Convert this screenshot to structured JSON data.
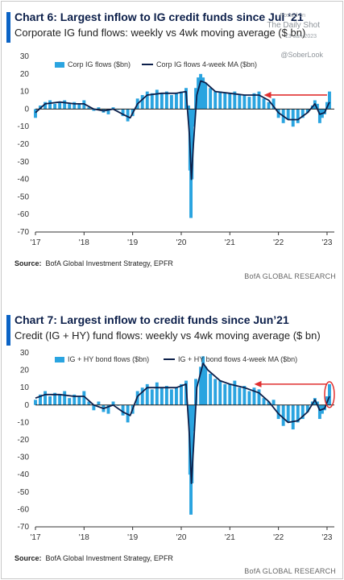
{
  "watermark": {
    "posted": "Posted on",
    "site": "The Daily Shot",
    "date": "13-Jan-2023",
    "handle": "@SoberLook"
  },
  "colors": {
    "bars": "#2aa4e0",
    "ma_line": "#0c1f4a",
    "arrow": "#e03030",
    "accent": "#0b63c5"
  },
  "chart_data": [
    {
      "type": "bar",
      "title": "Chart 6: Largest inflow to IG credit funds since Jul ‘21",
      "subtitle": "Corporate IG fund flows: weekly vs 4wk moving average ($ bn)",
      "xlabel": "",
      "ylabel": "",
      "ylim": [
        -70,
        30
      ],
      "yticks": [
        30,
        20,
        10,
        0,
        -10,
        -20,
        -30,
        -40,
        -50,
        -60,
        -70
      ],
      "xlim": [
        2017.0,
        2023.15
      ],
      "xticks": [
        "'17",
        "'18",
        "'19",
        "'20",
        "'21",
        "'22",
        "'23"
      ],
      "legend": {
        "placement": "top-left",
        "bar_series": "Corp IG flows ($bn)",
        "line_series": "Corp IG flows 4-week MA ($bn)"
      },
      "grid": false,
      "annotation": {
        "type": "arrow",
        "direction": "left",
        "from": [
          2023.0,
          8
        ],
        "to": [
          2021.7,
          8
        ]
      },
      "highlight_circle": false,
      "source": "BofA Global Investment Strategy, EPFR",
      "brand": "BofA GLOBAL RESEARCH",
      "series": [
        {
          "name": "Corp IG flows ($bn)",
          "kind": "bar",
          "points": [
            [
              2017.0,
              -5
            ],
            [
              2017.1,
              2
            ],
            [
              2017.2,
              4
            ],
            [
              2017.3,
              5
            ],
            [
              2017.4,
              3
            ],
            [
              2017.5,
              4
            ],
            [
              2017.6,
              5
            ],
            [
              2017.7,
              3
            ],
            [
              2017.8,
              4
            ],
            [
              2017.9,
              3
            ],
            [
              2018.0,
              5
            ],
            [
              2018.1,
              1
            ],
            [
              2018.2,
              -1
            ],
            [
              2018.3,
              1
            ],
            [
              2018.4,
              -2
            ],
            [
              2018.5,
              -3
            ],
            [
              2018.6,
              1
            ],
            [
              2018.7,
              0
            ],
            [
              2018.8,
              -4
            ],
            [
              2018.9,
              -7
            ],
            [
              2019.0,
              -4
            ],
            [
              2019.1,
              6
            ],
            [
              2019.2,
              8
            ],
            [
              2019.3,
              10
            ],
            [
              2019.4,
              9
            ],
            [
              2019.5,
              11
            ],
            [
              2019.6,
              9
            ],
            [
              2019.7,
              10
            ],
            [
              2019.8,
              8
            ],
            [
              2019.9,
              9
            ],
            [
              2020.0,
              10
            ],
            [
              2020.1,
              12
            ],
            [
              2020.15,
              2
            ],
            [
              2020.18,
              -35
            ],
            [
              2020.2,
              -62
            ],
            [
              2020.22,
              -40
            ],
            [
              2020.25,
              -10
            ],
            [
              2020.3,
              12
            ],
            [
              2020.35,
              18
            ],
            [
              2020.4,
              20
            ],
            [
              2020.45,
              18
            ],
            [
              2020.5,
              15
            ],
            [
              2020.6,
              12
            ],
            [
              2020.7,
              10
            ],
            [
              2020.8,
              10
            ],
            [
              2020.9,
              9
            ],
            [
              2021.0,
              9
            ],
            [
              2021.1,
              10
            ],
            [
              2021.2,
              8
            ],
            [
              2021.3,
              8
            ],
            [
              2021.4,
              7
            ],
            [
              2021.5,
              9
            ],
            [
              2021.6,
              10
            ],
            [
              2021.7,
              6
            ],
            [
              2021.8,
              4
            ],
            [
              2021.9,
              6
            ],
            [
              2022.0,
              -5
            ],
            [
              2022.1,
              -8
            ],
            [
              2022.2,
              -6
            ],
            [
              2022.3,
              -10
            ],
            [
              2022.4,
              -8
            ],
            [
              2022.5,
              -5
            ],
            [
              2022.6,
              -2
            ],
            [
              2022.7,
              2
            ],
            [
              2022.75,
              5
            ],
            [
              2022.8,
              3
            ],
            [
              2022.85,
              -8
            ],
            [
              2022.9,
              -5
            ],
            [
              2022.95,
              -3
            ],
            [
              2023.0,
              4
            ],
            [
              2023.05,
              10
            ]
          ]
        },
        {
          "name": "Corp IG flows 4-week MA ($bn)",
          "kind": "line",
          "points": [
            [
              2017.0,
              -2
            ],
            [
              2017.2,
              3
            ],
            [
              2017.5,
              4
            ],
            [
              2017.8,
              3
            ],
            [
              2018.0,
              3
            ],
            [
              2018.2,
              0
            ],
            [
              2018.4,
              -1
            ],
            [
              2018.6,
              0
            ],
            [
              2018.8,
              -3
            ],
            [
              2018.95,
              -5
            ],
            [
              2019.1,
              3
            ],
            [
              2019.3,
              8
            ],
            [
              2019.6,
              9
            ],
            [
              2019.9,
              9
            ],
            [
              2020.1,
              10
            ],
            [
              2020.17,
              -15
            ],
            [
              2020.21,
              -40
            ],
            [
              2020.25,
              -20
            ],
            [
              2020.32,
              8
            ],
            [
              2020.4,
              16
            ],
            [
              2020.5,
              15
            ],
            [
              2020.7,
              10
            ],
            [
              2021.0,
              9
            ],
            [
              2021.3,
              8
            ],
            [
              2021.6,
              8
            ],
            [
              2021.8,
              5
            ],
            [
              2022.0,
              -2
            ],
            [
              2022.2,
              -6
            ],
            [
              2022.4,
              -6
            ],
            [
              2022.6,
              -2
            ],
            [
              2022.75,
              3
            ],
            [
              2022.85,
              -3
            ],
            [
              2022.95,
              -2
            ],
            [
              2023.05,
              4
            ]
          ]
        }
      ]
    },
    {
      "type": "bar",
      "title": "Chart 7: Largest inflow to credit funds since Jun’21",
      "subtitle": "Credit (IG + HY) fund flows: weekly vs 4wk moving average ($ bn)",
      "xlabel": "",
      "ylabel": "",
      "ylim": [
        -70,
        30
      ],
      "yticks": [
        30,
        20,
        10,
        0,
        -10,
        -20,
        -30,
        -40,
        -50,
        -60,
        -70
      ],
      "xlim": [
        2017.0,
        2023.15
      ],
      "xticks": [
        "'17",
        "'18",
        "'19",
        "'20",
        "'21",
        "'22",
        "'23"
      ],
      "legend": {
        "placement": "top-left",
        "bar_series": "IG + HY bond flows ($bn)",
        "line_series": "IG + HY bond flows 4-week MA ($bn)"
      },
      "grid": false,
      "annotation": {
        "type": "arrow",
        "direction": "left",
        "from": [
          2023.0,
          12
        ],
        "to": [
          2021.5,
          12
        ]
      },
      "highlight_circle": true,
      "source": "BofA Global Investment Strategy, EPFR",
      "brand": "BofA GLOBAL RESEARCH",
      "series": [
        {
          "name": "IG + HY bond flows ($bn)",
          "kind": "bar",
          "points": [
            [
              2017.0,
              3
            ],
            [
              2017.1,
              6
            ],
            [
              2017.2,
              8
            ],
            [
              2017.3,
              5
            ],
            [
              2017.4,
              7
            ],
            [
              2017.5,
              6
            ],
            [
              2017.6,
              8
            ],
            [
              2017.7,
              4
            ],
            [
              2017.8,
              6
            ],
            [
              2017.9,
              5
            ],
            [
              2018.0,
              8
            ],
            [
              2018.1,
              2
            ],
            [
              2018.2,
              -3
            ],
            [
              2018.3,
              2
            ],
            [
              2018.4,
              -4
            ],
            [
              2018.5,
              -5
            ],
            [
              2018.6,
              2
            ],
            [
              2018.7,
              0
            ],
            [
              2018.8,
              -6
            ],
            [
              2018.9,
              -10
            ],
            [
              2019.0,
              -5
            ],
            [
              2019.1,
              8
            ],
            [
              2019.2,
              10
            ],
            [
              2019.3,
              12
            ],
            [
              2019.4,
              9
            ],
            [
              2019.5,
              13
            ],
            [
              2019.6,
              10
            ],
            [
              2019.7,
              11
            ],
            [
              2019.8,
              9
            ],
            [
              2019.9,
              10
            ],
            [
              2020.0,
              12
            ],
            [
              2020.1,
              14
            ],
            [
              2020.15,
              0
            ],
            [
              2020.18,
              -40
            ],
            [
              2020.2,
              -63
            ],
            [
              2020.22,
              -45
            ],
            [
              2020.25,
              -15
            ],
            [
              2020.3,
              15
            ],
            [
              2020.4,
              22
            ],
            [
              2020.45,
              28
            ],
            [
              2020.5,
              22
            ],
            [
              2020.6,
              18
            ],
            [
              2020.7,
              15
            ],
            [
              2020.8,
              14
            ],
            [
              2020.9,
              12
            ],
            [
              2021.0,
              12
            ],
            [
              2021.1,
              14
            ],
            [
              2021.2,
              10
            ],
            [
              2021.3,
              11
            ],
            [
              2021.4,
              8
            ],
            [
              2021.5,
              10
            ],
            [
              2021.6,
              9
            ],
            [
              2021.7,
              4
            ],
            [
              2021.8,
              2
            ],
            [
              2021.9,
              3
            ],
            [
              2022.0,
              -8
            ],
            [
              2022.1,
              -12
            ],
            [
              2022.2,
              -10
            ],
            [
              2022.3,
              -14
            ],
            [
              2022.4,
              -10
            ],
            [
              2022.5,
              -8
            ],
            [
              2022.6,
              -4
            ],
            [
              2022.7,
              2
            ],
            [
              2022.75,
              4
            ],
            [
              2022.8,
              2
            ],
            [
              2022.85,
              -8
            ],
            [
              2022.9,
              -5
            ],
            [
              2022.95,
              -3
            ],
            [
              2023.0,
              5
            ],
            [
              2023.05,
              12
            ]
          ]
        },
        {
          "name": "IG + HY bond flows 4-week MA ($bn)",
          "kind": "line",
          "points": [
            [
              2017.0,
              4
            ],
            [
              2017.2,
              6
            ],
            [
              2017.5,
              6
            ],
            [
              2017.8,
              5
            ],
            [
              2018.0,
              5
            ],
            [
              2018.2,
              0
            ],
            [
              2018.4,
              -2
            ],
            [
              2018.6,
              0
            ],
            [
              2018.8,
              -4
            ],
            [
              2018.95,
              -6
            ],
            [
              2019.1,
              5
            ],
            [
              2019.3,
              10
            ],
            [
              2019.6,
              10
            ],
            [
              2019.9,
              10
            ],
            [
              2020.1,
              12
            ],
            [
              2020.17,
              -18
            ],
            [
              2020.21,
              -45
            ],
            [
              2020.25,
              -25
            ],
            [
              2020.32,
              10
            ],
            [
              2020.45,
              24
            ],
            [
              2020.55,
              20
            ],
            [
              2020.8,
              14
            ],
            [
              2021.0,
              12
            ],
            [
              2021.3,
              10
            ],
            [
              2021.6,
              7
            ],
            [
              2021.8,
              2
            ],
            [
              2022.0,
              -5
            ],
            [
              2022.2,
              -10
            ],
            [
              2022.4,
              -9
            ],
            [
              2022.6,
              -4
            ],
            [
              2022.75,
              3
            ],
            [
              2022.85,
              -3
            ],
            [
              2022.95,
              -2
            ],
            [
              2023.05,
              5
            ]
          ]
        }
      ]
    }
  ]
}
